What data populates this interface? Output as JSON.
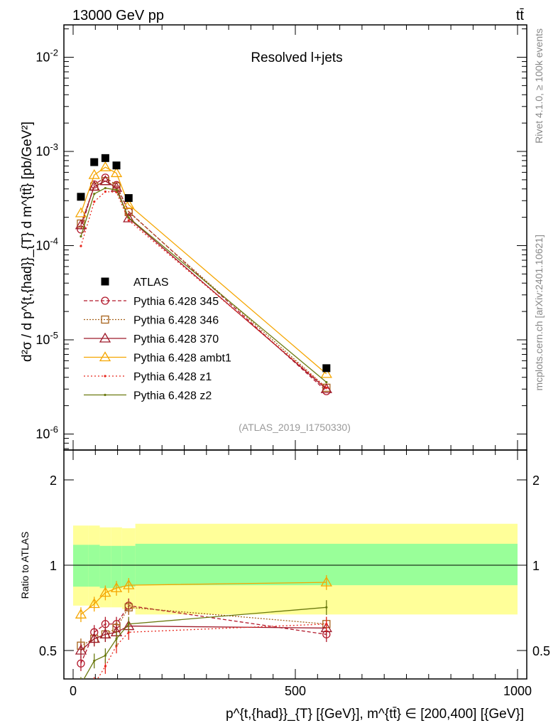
{
  "header": {
    "left": "13000 GeV pp",
    "right": "tt̄"
  },
  "side": {
    "rivet": "Rivet 4.1.0, ≥ 100k events",
    "mcplots": "mcplots.cern.ch [arXiv:2401.10621]"
  },
  "chart_data": {
    "type": "line",
    "title": "Resolved l+jets",
    "analysis": "(ATLAS_2019_I1750330)",
    "xlabel": "p^{t,{had}}_{T} [{GeV}], m^{tt̄} ∈ [200,400] [{GeV}]",
    "ylabel": "d²σ / d p^{t,{had}}_{T} d m^{tt̄} [pb/GeV²]",
    "ratio_ylabel": "Ratio to ATLAS",
    "xlim": [
      -20,
      1010
    ],
    "ylim": [
      6e-07,
      0.022
    ],
    "ratio_ylim": [
      0.4,
      2.55
    ],
    "yscale": "log",
    "x_ticks": [
      "0",
      "500",
      "1000"
    ],
    "y_ticks": [
      "10^-6",
      "10^-5",
      "10^-4",
      "10^-3",
      "10^-2"
    ],
    "ratio_ticks": [
      "0.5",
      "1",
      "2"
    ],
    "x": [
      17.5,
      47.5,
      72.5,
      97.5,
      125,
      570
    ],
    "bin_edges": [
      0,
      35,
      60,
      85,
      110,
      140,
      1000
    ],
    "atlas": {
      "name": "ATLAS",
      "values": [
        0.00033,
        0.00077,
        0.00085,
        0.00071,
        0.00032,
        5e-06
      ],
      "color": "#000000"
    },
    "band_inner": [
      1.18,
      1.18,
      1.17,
      1.17,
      1.17,
      1.19
    ],
    "band_inner_low": [
      0.84,
      0.84,
      0.83,
      0.83,
      0.84,
      0.85
    ],
    "band_outer": [
      1.38,
      1.38,
      1.36,
      1.36,
      1.35,
      1.4
    ],
    "band_outer_low": [
      0.72,
      0.72,
      0.71,
      0.71,
      0.7,
      0.67
    ],
    "series": [
      {
        "name": "Pythia 6.428 345",
        "color": "#b2182b",
        "dash": "5,3",
        "marker": "circle",
        "ratio": [
          0.45,
          0.58,
          0.62,
          0.62,
          0.72,
          0.57
        ]
      },
      {
        "name": "Pythia 6.428 346",
        "color": "#a6611a",
        "dash": "2,2",
        "marker": "square",
        "ratio": [
          0.52,
          0.55,
          0.57,
          0.6,
          0.71,
          0.62
        ]
      },
      {
        "name": "Pythia 6.428 370",
        "color": "#9e1a2a",
        "dash": "",
        "marker": "triangle",
        "ratio": [
          0.5,
          0.55,
          0.57,
          0.58,
          0.61,
          0.6
        ]
      },
      {
        "name": "Pythia 6.428 ambt1",
        "color": "#f5a500",
        "dash": "",
        "marker": "triangle",
        "ratio": [
          0.67,
          0.73,
          0.8,
          0.83,
          0.85,
          0.87
        ]
      },
      {
        "name": "Pythia 6.428 z1",
        "color": "#e8281e",
        "dash": "2,3",
        "marker": "dot",
        "ratio": [
          0.3,
          0.38,
          0.44,
          0.52,
          0.58,
          0.62
        ]
      },
      {
        "name": "Pythia 6.428 z2",
        "color": "#6b7a10",
        "dash": "",
        "marker": "dot",
        "ratio": [
          0.38,
          0.46,
          0.48,
          0.55,
          0.62,
          0.71
        ]
      }
    ]
  }
}
